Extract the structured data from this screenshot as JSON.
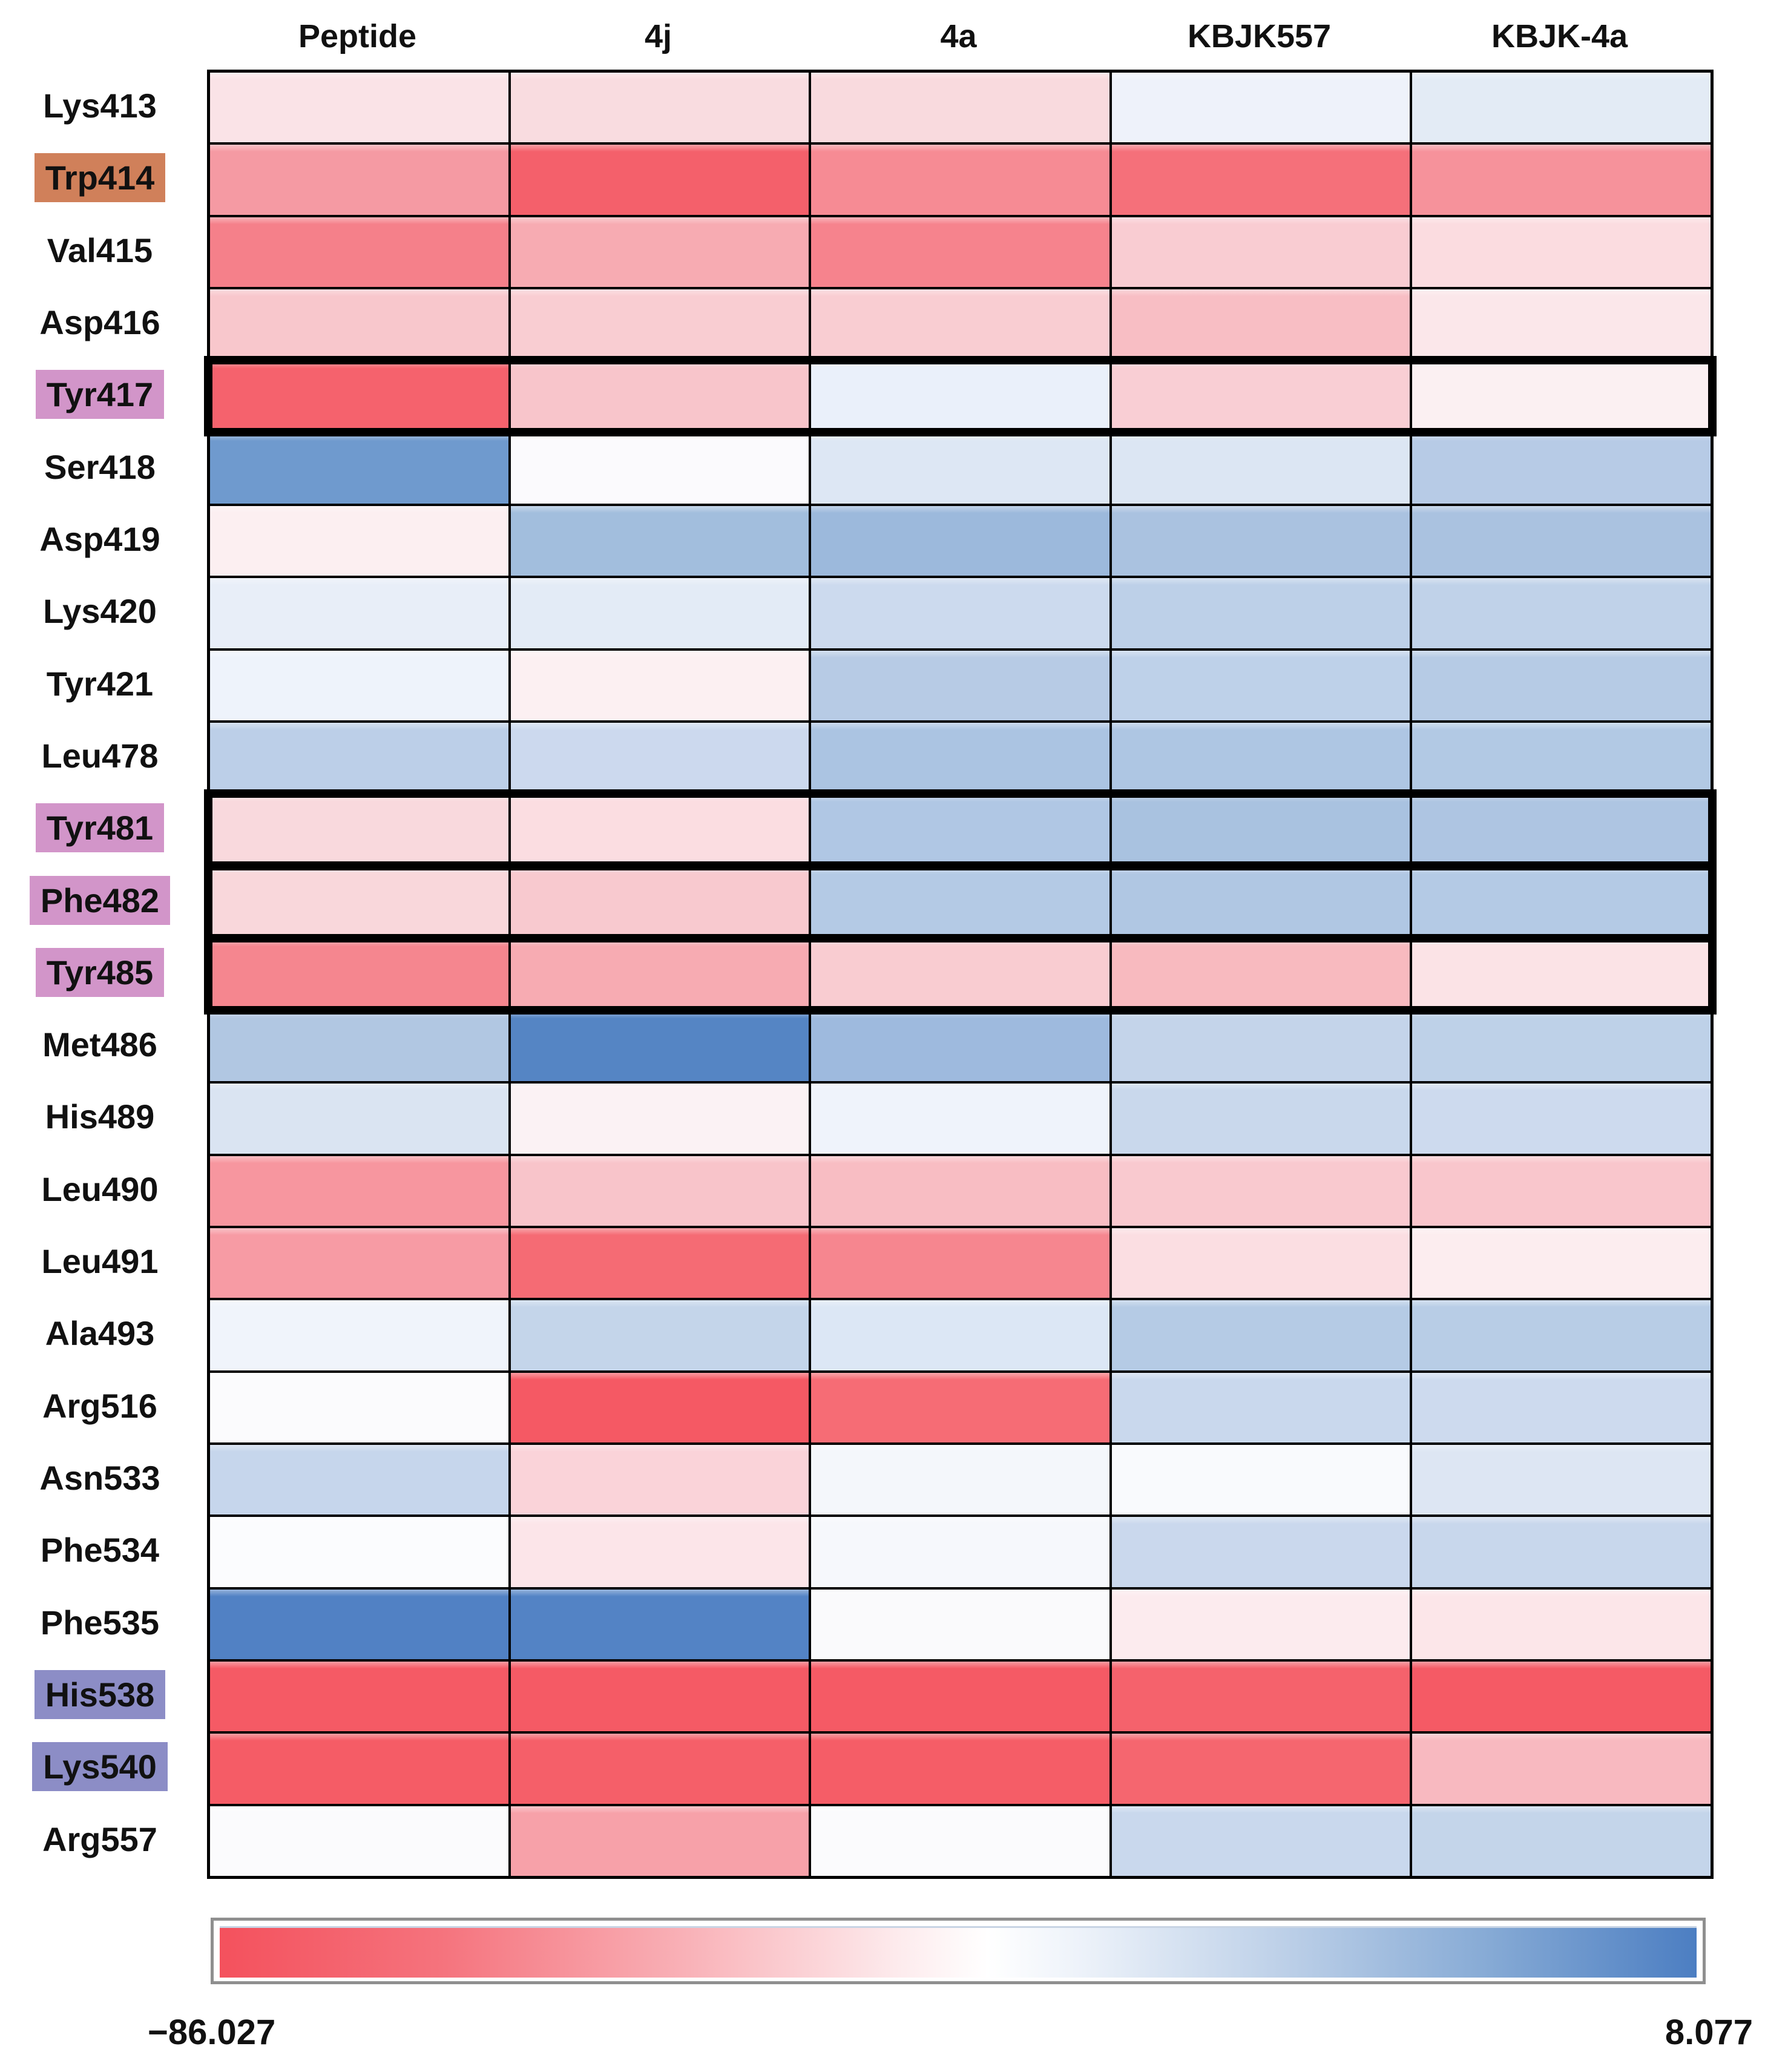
{
  "chart_data": {
    "type": "heatmap",
    "title": "",
    "columns": [
      "Peptide",
      "4j",
      "4a",
      "KBJK557",
      "KBJK-4a"
    ],
    "rows": [
      {
        "label": "Lys413",
        "highlight": "none",
        "thick_border": false
      },
      {
        "label": "Trp414",
        "highlight": "orange",
        "thick_border": false
      },
      {
        "label": "Val415",
        "highlight": "none",
        "thick_border": false
      },
      {
        "label": "Asp416",
        "highlight": "none",
        "thick_border": false
      },
      {
        "label": "Tyr417",
        "highlight": "violet",
        "thick_border": true
      },
      {
        "label": "Ser418",
        "highlight": "none",
        "thick_border": false
      },
      {
        "label": "Asp419",
        "highlight": "none",
        "thick_border": false
      },
      {
        "label": "Lys420",
        "highlight": "none",
        "thick_border": false
      },
      {
        "label": "Tyr421",
        "highlight": "none",
        "thick_border": false
      },
      {
        "label": "Leu478",
        "highlight": "none",
        "thick_border": false
      },
      {
        "label": "Tyr481",
        "highlight": "violet",
        "thick_border": true
      },
      {
        "label": "Phe482",
        "highlight": "violet",
        "thick_border": true
      },
      {
        "label": "Tyr485",
        "highlight": "violet",
        "thick_border": true
      },
      {
        "label": "Met486",
        "highlight": "none",
        "thick_border": false
      },
      {
        "label": "His489",
        "highlight": "none",
        "thick_border": false
      },
      {
        "label": "Leu490",
        "highlight": "none",
        "thick_border": false
      },
      {
        "label": "Leu491",
        "highlight": "none",
        "thick_border": false
      },
      {
        "label": "Ala493",
        "highlight": "none",
        "thick_border": false
      },
      {
        "label": "Arg516",
        "highlight": "none",
        "thick_border": false
      },
      {
        "label": "Asn533",
        "highlight": "none",
        "thick_border": false
      },
      {
        "label": "Phe534",
        "highlight": "none",
        "thick_border": false
      },
      {
        "label": "Phe535",
        "highlight": "none",
        "thick_border": false
      },
      {
        "label": "His538",
        "highlight": "periwinkle",
        "thick_border": false
      },
      {
        "label": "Lys540",
        "highlight": "periwinkle",
        "thick_border": false
      },
      {
        "label": "Arg557",
        "highlight": "none",
        "thick_border": false
      }
    ],
    "highlight_colors": {
      "orange": "#d0805a",
      "violet": "#d295c9",
      "periwinkle": "#8c8dc6"
    },
    "cell_colors": [
      [
        "#fae3e7",
        "#f9dce0",
        "#f9dade",
        "#eef2fa",
        "#e3ebf5"
      ],
      [
        "#f59aa3",
        "#f4606b",
        "#f68b94",
        "#f5707a",
        "#f6929b"
      ],
      [
        "#f5808a",
        "#f7abb2",
        "#f6838d",
        "#f9ccd2",
        "#fbdce0"
      ],
      [
        "#f8c7cc",
        "#f9cdd2",
        "#f9cdd2",
        "#f8bec4",
        "#fbe7ea"
      ],
      [
        "#f5626d",
        "#f8c5cb",
        "#eaf0fa",
        "#f9ced4",
        "#fbf0f2"
      ],
      [
        "#6f9ace",
        "#fbfafd",
        "#dde7f4",
        "#dce6f3",
        "#b7cbe6"
      ],
      [
        "#fceff1",
        "#a2bedd",
        "#9cb9dc",
        "#aac2e0",
        "#aac2e0"
      ],
      [
        "#e8eef8",
        "#e3ebf6",
        "#ccdaee",
        "#bdd0e8",
        "#c0d2e9"
      ],
      [
        "#eef3fb",
        "#fcf0f2",
        "#b7cbe5",
        "#bed1e9",
        "#b6cbe5"
      ],
      [
        "#bccfe8",
        "#ccd9ee",
        "#abc4e2",
        "#aec6e3",
        "#b2c9e4"
      ],
      [
        "#f9d9dd",
        "#fbdde1",
        "#b0c7e4",
        "#a9c2e0",
        "#aec5e2"
      ],
      [
        "#f9d7db",
        "#f8c9cf",
        "#b4cae5",
        "#b0c7e3",
        "#b4cae5"
      ],
      [
        "#f5868f",
        "#f7abb2",
        "#f9ccd1",
        "#f8babf",
        "#fbe3e6"
      ],
      [
        "#b1c7e2",
        "#5585c4",
        "#9ebade",
        "#c4d4ea",
        "#bed1e8"
      ],
      [
        "#dae4f2",
        "#fbf2f4",
        "#eff3fb",
        "#c9d8ec",
        "#cddaee"
      ],
      [
        "#f7969f",
        "#f8c4ca",
        "#f8bdc3",
        "#f9c9cf",
        "#f9c6cc"
      ],
      [
        "#f79ba4",
        "#f56b74",
        "#f6868f",
        "#fbdee2",
        "#fcedef"
      ],
      [
        "#f0f4fb",
        "#c4d5ea",
        "#dce7f5",
        "#b5cbe5",
        "#b8cde6"
      ],
      [
        "#fbfbfd",
        "#f55964",
        "#f66c75",
        "#c9d8ed",
        "#cddaee"
      ],
      [
        "#c6d6ec",
        "#fad3d9",
        "#f4f7fb",
        "#f9fafd",
        "#dde6f3"
      ],
      [
        "#fbfcfe",
        "#fce5e9",
        "#f6f8fc",
        "#cad8ed",
        "#c8d7ec"
      ],
      [
        "#5181c4",
        "#5383c5",
        "#fafafc",
        "#fcebee",
        "#fce6e9"
      ],
      [
        "#f55a65",
        "#f55a65",
        "#f55a65",
        "#f5626c",
        "#f55a65"
      ],
      [
        "#f55c66",
        "#f55f69",
        "#f55d67",
        "#f5666f",
        "#f8b9c0"
      ],
      [
        "#fbfbfd",
        "#f7a1a9",
        "#fbfbfd",
        "#c9d8ed",
        "#c4d5ea"
      ]
    ],
    "colorbar": {
      "min": -86.027,
      "max": 8.077,
      "min_label": "−86.027",
      "max_label": "8.077",
      "gradient_stops": [
        {
          "color": "#f4515d",
          "pos": 0
        },
        {
          "color": "#f5737d",
          "pos": 15
        },
        {
          "color": "#f9b3b9",
          "pos": 32
        },
        {
          "color": "#fdebed",
          "pos": 46
        },
        {
          "color": "#ffffff",
          "pos": 52
        },
        {
          "color": "#eef3fa",
          "pos": 58
        },
        {
          "color": "#bdd0e8",
          "pos": 72
        },
        {
          "color": "#86aad5",
          "pos": 86
        },
        {
          "color": "#4c7ec2",
          "pos": 100
        }
      ],
      "legend_position": "bottom"
    },
    "grid_lines": "black",
    "values_rendered_as": "cell colors only (no numeric labels shown)"
  }
}
